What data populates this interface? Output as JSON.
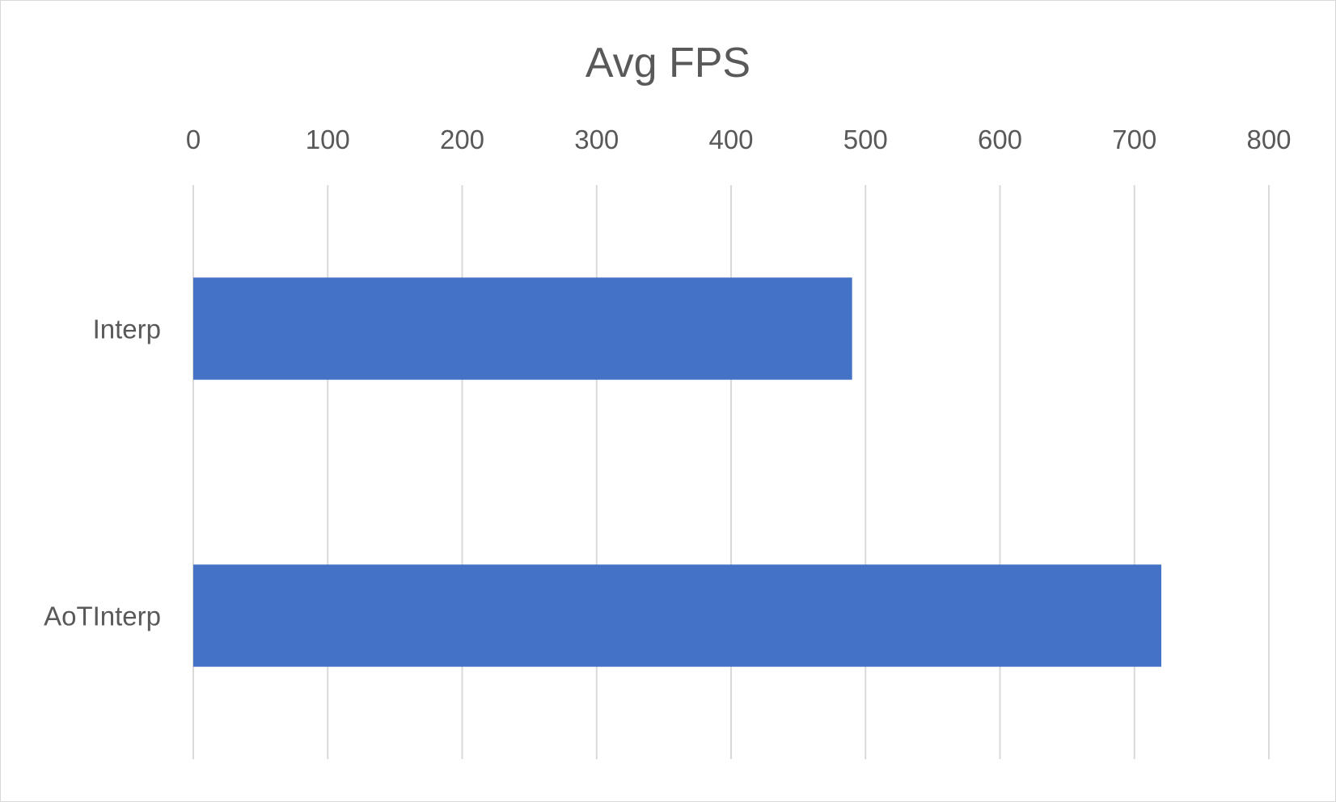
{
  "chart_data": {
    "type": "bar",
    "orientation": "horizontal",
    "title": "Avg FPS",
    "xlabel": "",
    "ylabel": "",
    "categories": [
      "Interp",
      "AoTInterp"
    ],
    "values": [
      490,
      720
    ],
    "xlim": [
      0,
      800
    ],
    "xticks": [
      0,
      100,
      200,
      300,
      400,
      500,
      600,
      700,
      800
    ],
    "x_axis_position": "top",
    "grid": "vertical",
    "legend": "none",
    "bar_color": "#4472C4"
  }
}
